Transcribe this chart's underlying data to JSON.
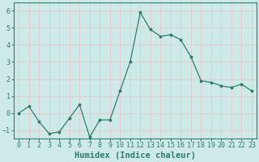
{
  "x": [
    0,
    1,
    2,
    3,
    4,
    5,
    6,
    7,
    8,
    9,
    10,
    11,
    12,
    13,
    14,
    15,
    16,
    17,
    18,
    19,
    20,
    21,
    22,
    23
  ],
  "y": [
    0.0,
    0.4,
    -0.5,
    -1.2,
    -1.1,
    -0.3,
    0.5,
    -1.4,
    -0.4,
    -0.4,
    1.3,
    3.0,
    5.9,
    4.9,
    4.5,
    4.6,
    4.3,
    3.3,
    1.9,
    1.8,
    1.6,
    1.5,
    1.7,
    1.3
  ],
  "line_color": "#2e7d6e",
  "marker": "o",
  "marker_size": 1.8,
  "linewidth": 0.9,
  "xlabel": "Humidex (Indice chaleur)",
  "ylim": [
    -1.5,
    6.5
  ],
  "xlim": [
    -0.5,
    23.5
  ],
  "yticks": [
    -1,
    0,
    1,
    2,
    3,
    4,
    5,
    6
  ],
  "xticks": [
    0,
    1,
    2,
    3,
    4,
    5,
    6,
    7,
    8,
    9,
    10,
    11,
    12,
    13,
    14,
    15,
    16,
    17,
    18,
    19,
    20,
    21,
    22,
    23
  ],
  "xtick_labels": [
    "0",
    "1",
    "2",
    "3",
    "4",
    "5",
    "6",
    "7",
    "8",
    "9",
    "10",
    "11",
    "12",
    "13",
    "14",
    "15",
    "16",
    "17",
    "18",
    "19",
    "20",
    "21",
    "22",
    "23"
  ],
  "background_color": "#ceeae8",
  "grid_color": "#e8c8c8",
  "tick_fontsize": 6,
  "xlabel_fontsize": 7.5,
  "xlabel_fontweight": "bold"
}
